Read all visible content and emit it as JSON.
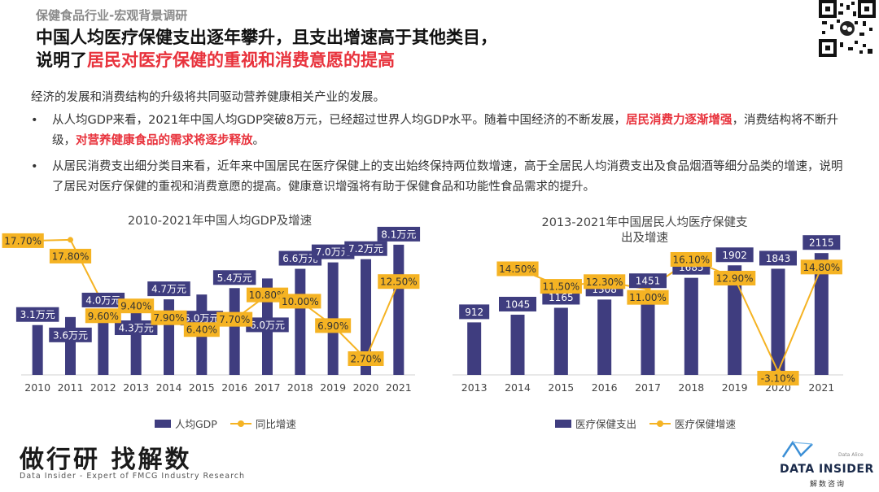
{
  "header": {
    "subtitle": "保健食品行业-宏观背景调研",
    "headline_line1": "中国人均医疗保健支出逐年攀升，且支出增速高于其他类目，",
    "headline_line2_prefix": "说明了",
    "headline_line2_highlight": "居民对医疗保健的重视和消费意愿的提高"
  },
  "body": {
    "intro": "经济的发展和消费结构的升级将共同驱动营养健康相关产业的发展。",
    "bullet1_a": "从人均GDP来看，2021年中国人均GDP突破8万元，已经超过世界人均GDP水平。随着中国经济的不断发展，",
    "bullet1_red1": "居民消费力逐渐增强",
    "bullet1_b": "，消费结构将不断升级，",
    "bullet1_red2": "对营养健康食品的需求将逐步释放",
    "bullet1_c": "。",
    "bullet2": "从居民消费支出细分类目来看，近年来中国居民在医疗保健上的支出始终保持两位数增速，高于全居民人均消费支出及食品烟酒等细分品类的增速，说明了居民对医疗保健的重视和消费意愿的提高。健康意识增强将有助于保健食品和功能性食品需求的提升。",
    "bullet_marker": "•"
  },
  "chart_data": [
    {
      "type": "bar",
      "title": "2010-2021年中国人均GDP及增速",
      "categories": [
        "2010",
        "2011",
        "2012",
        "2013",
        "2014",
        "2015",
        "2016",
        "2017",
        "2018",
        "2019",
        "2020",
        "2021"
      ],
      "series": [
        {
          "name": "人均GDP",
          "values": [
            3.1,
            3.6,
            4.0,
            4.3,
            4.7,
            5.0,
            5.4,
            6.0,
            6.6,
            7.0,
            7.2,
            8.1
          ],
          "labels": [
            "3.1万元",
            "3.6万元",
            "4.0万元",
            "4.3万元",
            "4.7万元",
            "5.0万元",
            "5.4万元",
            "6.0万元",
            "6.6万元",
            "7.0万元",
            "7.2万元",
            "8.1万元"
          ]
        },
        {
          "name": "同比增速",
          "type": "line",
          "values": [
            17.7,
            17.8,
            9.6,
            9.4,
            7.9,
            6.4,
            7.7,
            10.8,
            10.0,
            6.9,
            2.7,
            12.5
          ],
          "labels": [
            "17.70%",
            "17.80%",
            "9.60%",
            "9.40%",
            "7.90%",
            "6.40%",
            "7.70%",
            "10.80%",
            "10.00%",
            "6.90%",
            "2.70%",
            "12.50%"
          ]
        }
      ],
      "legend": [
        "人均GDP",
        "同比增速"
      ]
    },
    {
      "type": "bar",
      "title_line1": "2013-2021年中国居民人均医疗保健支",
      "title_line2": "出及增速",
      "categories": [
        "2013",
        "2014",
        "2015",
        "2016",
        "2017",
        "2018",
        "2019",
        "2020",
        "2021"
      ],
      "series": [
        {
          "name": "医疗保健支出",
          "values": [
            912,
            1045,
            1165,
            1308,
            1451,
            1685,
            1902,
            1843,
            2115
          ],
          "labels": [
            "912",
            "1045",
            "1165",
            "1308",
            "1451",
            "1685",
            "1902",
            "1843",
            "2115"
          ]
        },
        {
          "name": "医疗保健增速",
          "type": "line",
          "values": [
            null,
            14.5,
            11.5,
            12.3,
            11.0,
            16.1,
            12.9,
            -3.1,
            14.8
          ],
          "labels": [
            "",
            "14.50%",
            "11.50%",
            "12.30%",
            "11.00%",
            "16.10%",
            "12.90%",
            "-3.10%",
            "14.80%"
          ]
        }
      ],
      "legend": [
        "医疗保健支出",
        "医疗保健增速"
      ]
    }
  ],
  "footer": {
    "slogan": "做行研 找解数",
    "slogan_sub": "Data Insider - Expert of FMCG Industry Research",
    "brand": "DATA INSIDER",
    "brand_cn": "解数咨询",
    "brand_tag": "Data Alice"
  },
  "colors": {
    "bar": "#3f3d7f",
    "line": "#f5b323",
    "accent_red": "#e8323c"
  }
}
